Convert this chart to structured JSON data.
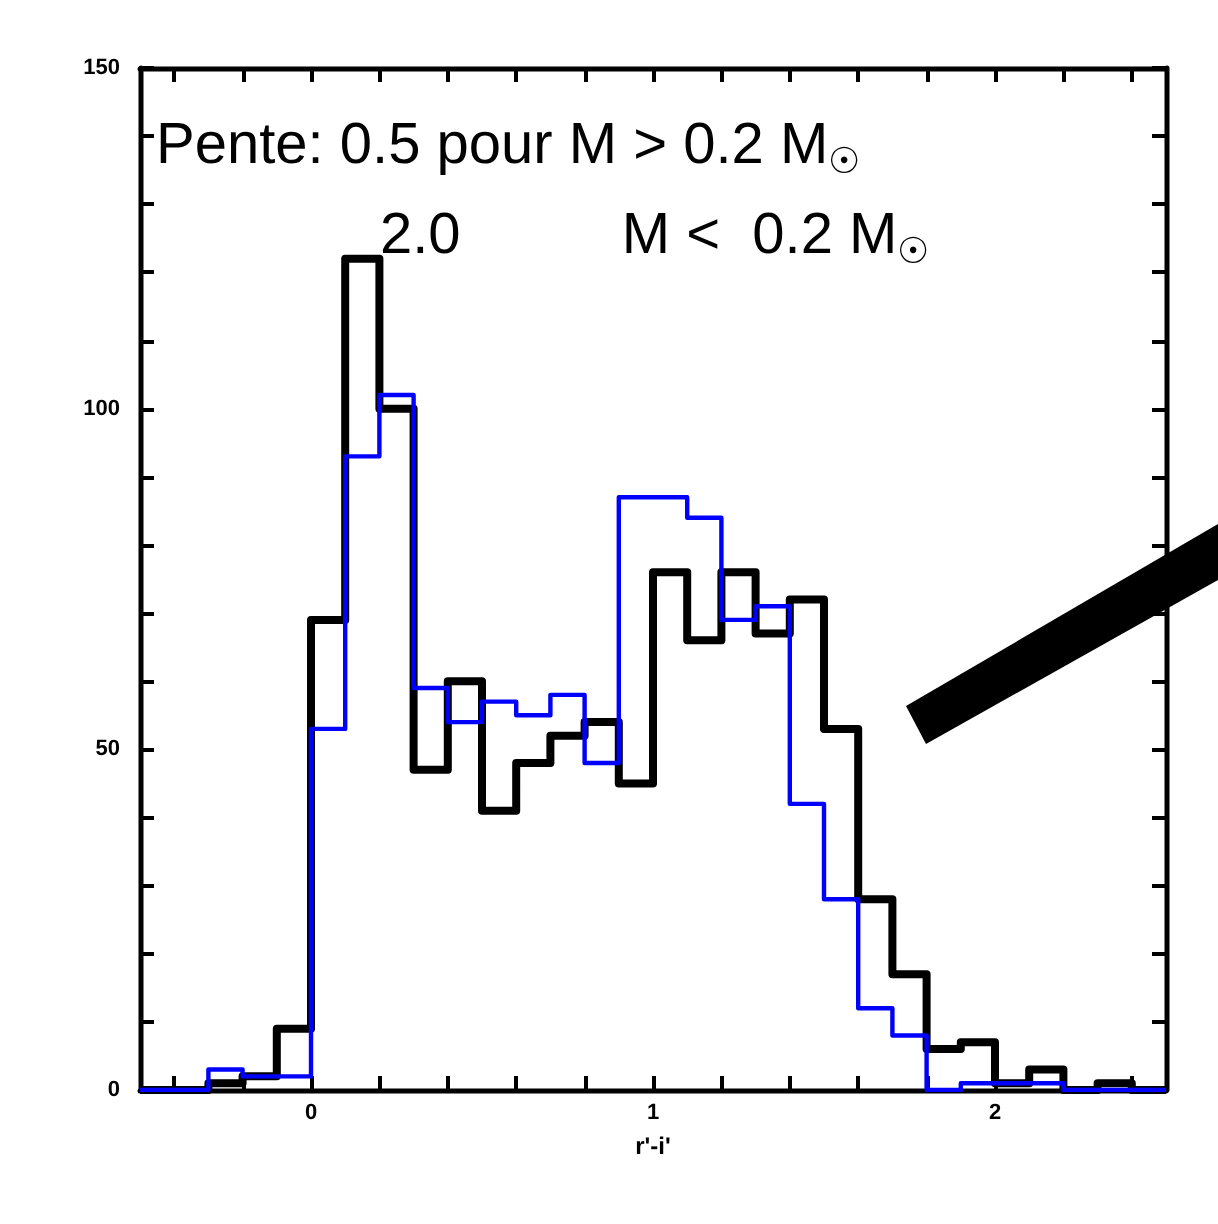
{
  "chart_data": {
    "type": "histogram",
    "xlabel": "r'-i'",
    "bins": [
      -0.5,
      -0.4,
      -0.3,
      -0.2,
      -0.1,
      0,
      0.1,
      0.2,
      0.3,
      0.4,
      0.5,
      0.6,
      0.7,
      0.8,
      0.9,
      1.0,
      1.1,
      1.2,
      1.3,
      1.4,
      1.5,
      1.6,
      1.7,
      1.8,
      1.9,
      2.0,
      2.1,
      2.2,
      2.3,
      2.4,
      2.5
    ],
    "series": [
      {
        "color": "#000000",
        "values": [
          0,
          0,
          1,
          2,
          9,
          69,
          122,
          100,
          47,
          60,
          41,
          48,
          52,
          54,
          45,
          76,
          66,
          76,
          67,
          72,
          53,
          28,
          17,
          6,
          7,
          1,
          3,
          0,
          1,
          0
        ]
      },
      {
        "color": "#0000ff",
        "values": [
          0,
          0,
          3,
          2,
          2,
          53,
          93,
          102,
          59,
          54,
          57,
          55,
          58,
          48,
          87,
          87,
          84,
          69,
          71,
          42,
          28,
          12,
          8,
          0,
          1,
          1,
          1,
          0,
          0,
          0
        ]
      }
    ],
    "xlim": [
      -0.5,
      2.5
    ],
    "xticks": [
      0,
      1,
      2
    ],
    "ylim": [
      0,
      150
    ],
    "yticks": [
      0,
      50,
      100,
      150
    ],
    "grid": false,
    "annotations": [
      "Pente: 0.5 pour M > 0.2 M$_{☉}$",
      "2.0          M <  0.2 M$_{☉}$"
    ]
  }
}
